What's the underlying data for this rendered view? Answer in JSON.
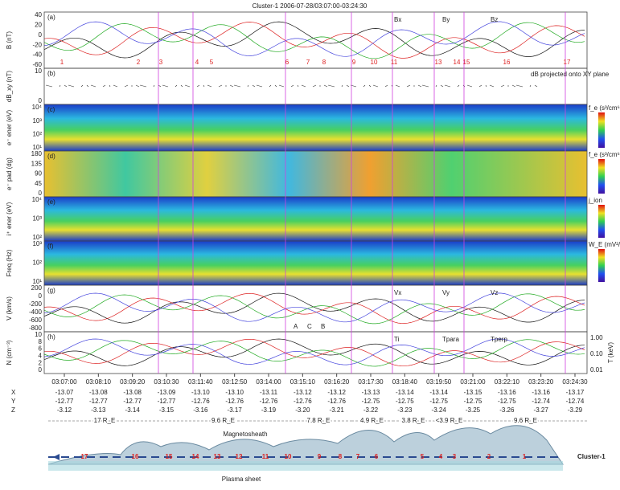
{
  "title": "Cluster-1 2006-07-28/03:07:00-03:24:30",
  "panels": [
    {
      "label": "(a)",
      "ylabel": "B (nT)",
      "ticks": [
        "40",
        "20",
        "0",
        "-20",
        "-40",
        "-60"
      ],
      "notes": [
        "Bx",
        "By",
        "Bz"
      ]
    },
    {
      "label": "(b)",
      "ylabel": "dB_xy (nT)",
      "ticks": [
        "10",
        "0"
      ],
      "notes": [
        "dB projected onto XY plane"
      ]
    },
    {
      "label": "(c)",
      "ylabel": "e⁻ ener (eV)",
      "ticks": [
        "10⁴",
        "10³",
        "10²",
        "10¹"
      ],
      "colorbar": "f_e (s³/cm⁶)"
    },
    {
      "label": "(d)",
      "ylabel": "e⁻ pad (dg)",
      "ticks": [
        "180",
        "135",
        "90",
        "45",
        "0"
      ],
      "colorbar": "f_e (s³/cm⁶)"
    },
    {
      "label": "(e)",
      "ylabel": "i⁺ ener (eV)",
      "ticks": [
        "10⁴",
        "10³",
        "10²"
      ],
      "colorbar": "j_ion"
    },
    {
      "label": "(f)",
      "ylabel": "Freq (Hz)",
      "ticks": [
        "10³",
        "10²",
        "10¹"
      ],
      "colorbar": "W_E (mV²/m²·Hz)"
    },
    {
      "label": "(g)",
      "ylabel": "V (km/s)",
      "ticks": [
        "200",
        "0",
        "-200",
        "-400",
        "-600",
        "-800"
      ],
      "notes": [
        "Vx",
        "Vy",
        "Vz",
        "A",
        "C",
        "B"
      ]
    },
    {
      "label": "(h)",
      "ylabel": "N (cm⁻³)",
      "ticks": [
        "10",
        "8",
        "6",
        "4",
        "2",
        "0"
      ],
      "notes": [
        "Ti",
        "Tpara",
        "Tperp"
      ],
      "right_label": "T (keV)",
      "right_ticks": [
        "1.00",
        "0.10",
        "0.01"
      ]
    }
  ],
  "events": [
    "1",
    "2",
    "3",
    "4",
    "5",
    "6",
    "7",
    "8",
    "9",
    "10",
    "11",
    "13",
    "14",
    "15",
    "16",
    "17"
  ],
  "time_axis": {
    "times": [
      "03:07:00",
      "03:08:10",
      "03:09:20",
      "03:10:30",
      "03:11:40",
      "03:12:50",
      "03:14:00",
      "03:15:10",
      "03:16:20",
      "03:17:30",
      "03:18:40",
      "03:19:50",
      "03:21:00",
      "03:22:10",
      "03:23:20",
      "03:24:30"
    ],
    "rows": [
      {
        "name": "X",
        "values": [
          "-13.07",
          "-13.08",
          "-13.08",
          "-13.09",
          "-13.10",
          "-13.10",
          "-13.11",
          "-13.12",
          "-13.12",
          "-13.13",
          "-13.14",
          "-13.14",
          "-13.15",
          "-13.16",
          "-13.16",
          "-13.17"
        ]
      },
      {
        "name": "Y",
        "values": [
          "-12.77",
          "-12.77",
          "-12.77",
          "-12.77",
          "-12.76",
          "-12.76",
          "-12.76",
          "-12.76",
          "-12.76",
          "-12.75",
          "-12.75",
          "-12.75",
          "-12.75",
          "-12.75",
          "-12.74",
          "-12.74"
        ]
      },
      {
        "name": "Z",
        "values": [
          "-3.12",
          "-3.13",
          "-3.14",
          "-3.15",
          "-3.16",
          "-3.17",
          "-3.19",
          "-3.20",
          "-3.21",
          "-3.22",
          "-3.23",
          "-3.24",
          "-3.25",
          "-3.26",
          "-3.27",
          "-3.29"
        ]
      }
    ]
  },
  "distances": [
    "17 R_E",
    "9.6 R_E",
    "7.8 R_E",
    "4.9 R_E",
    "3.8 R_E",
    "<3.9 R_E",
    "9.6 R_E"
  ],
  "diagram": {
    "magnetosheath": "Magnetosheath",
    "plasma_sheet": "Plasma sheet",
    "spacecraft": "Cluster-1",
    "events": [
      "17",
      "16",
      "15",
      "14",
      "13",
      "12",
      "11",
      "10",
      "9",
      "8",
      "7",
      "6",
      "5",
      "4",
      "3",
      "2",
      "1"
    ]
  }
}
